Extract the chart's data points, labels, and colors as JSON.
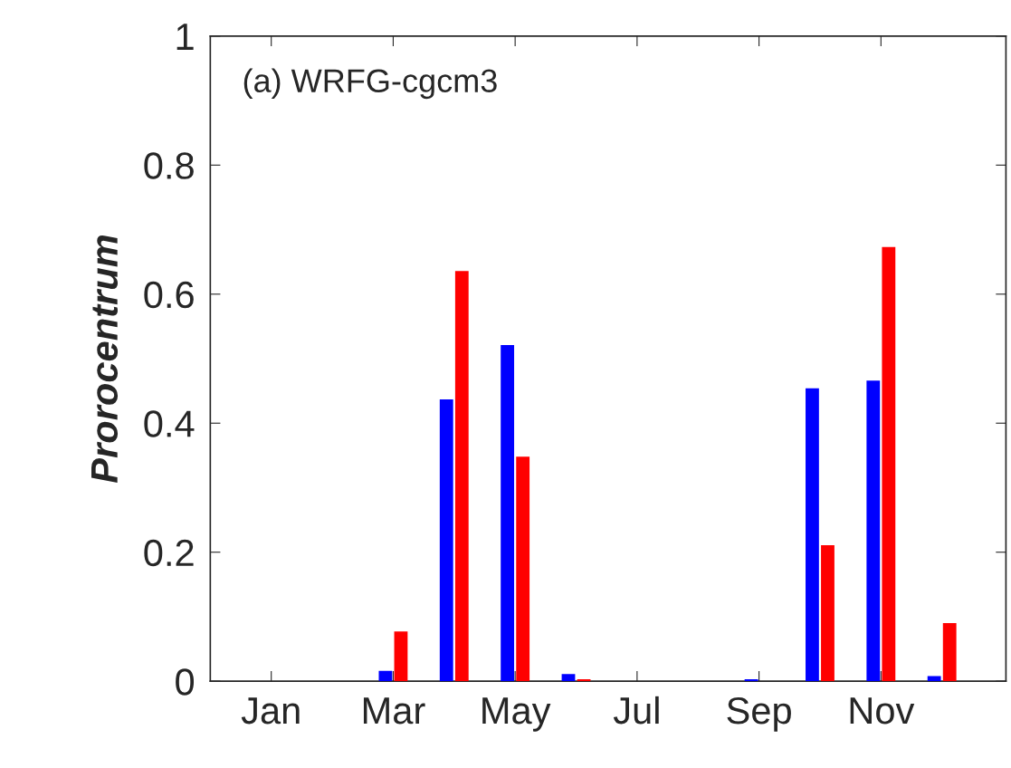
{
  "chart_data": {
    "type": "bar",
    "ylabel": "Prorocentrum",
    "annotations": [
      "(a) WRFG-cgcm3"
    ],
    "categories": [
      "Jan",
      null,
      "Mar",
      null,
      "May",
      null,
      "Jul",
      null,
      "Sep",
      null,
      "Nov",
      null
    ],
    "series": [
      {
        "color": "#0000ff",
        "values": [
          0,
          0,
          0.016,
          0.437,
          0.521,
          0.011,
          0,
          0,
          0.003,
          0.454,
          0.466,
          0.008
        ]
      },
      {
        "color": "#ff0000",
        "values": [
          0,
          0,
          0.077,
          0.636,
          0.348,
          0.003,
          0,
          0,
          0,
          0.211,
          0.673,
          0.09
        ]
      }
    ],
    "ylim": [
      0,
      1
    ],
    "yticks": [
      0,
      0.2,
      0.4,
      0.6,
      0.8,
      1
    ],
    "grid": false,
    "legend": false
  }
}
